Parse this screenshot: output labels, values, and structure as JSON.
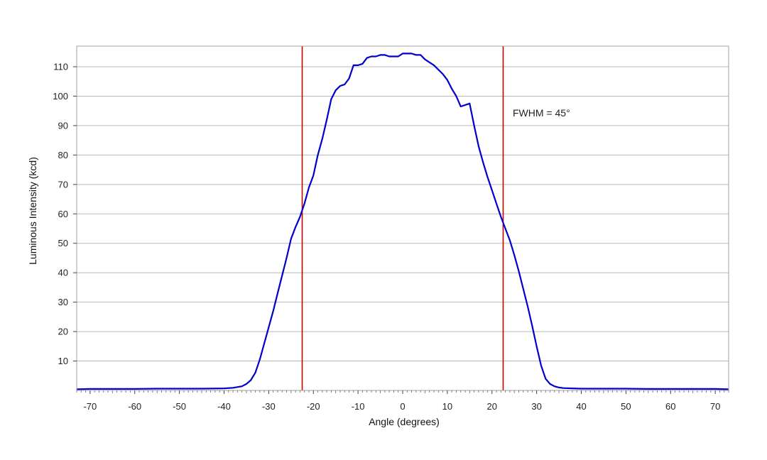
{
  "chart_data": {
    "type": "line",
    "title": "",
    "xlabel": "Angle (degrees)",
    "ylabel": "Luminous Intensity (kcd)",
    "xlim": [
      -73,
      73
    ],
    "ylim": [
      0,
      117
    ],
    "grid": true,
    "x_ticks": [
      -70,
      -60,
      -50,
      -40,
      -30,
      -20,
      -10,
      0,
      10,
      20,
      30,
      40,
      50,
      60,
      70
    ],
    "y_ticks": [
      10,
      20,
      30,
      40,
      50,
      60,
      70,
      80,
      90,
      100,
      110
    ],
    "annotation": "FWHM = 45°",
    "colors": {
      "curve": "#0000cc",
      "markers": "#cc0000",
      "grid": "#b8b8b8",
      "frame": "#a0a0a0"
    },
    "series": [
      {
        "x": [
          -73,
          -70,
          -65,
          -60,
          -55,
          -50,
          -45,
          -40,
          -38,
          -36,
          -35,
          -34,
          -33,
          -32,
          -31,
          -30,
          -29,
          -28,
          -27,
          -26,
          -25,
          -24,
          -23,
          -22,
          -21,
          -20,
          -19,
          -18,
          -17,
          -16,
          -15,
          -14,
          -13,
          -12,
          -11,
          -10,
          -9,
          -8,
          -7,
          -6,
          -5,
          -4,
          -3,
          -2,
          -1,
          0,
          1,
          2,
          3,
          4,
          5,
          6,
          7,
          8,
          9,
          10,
          11,
          12,
          13,
          14,
          15,
          16,
          17,
          18,
          19,
          20,
          21,
          22,
          23,
          24,
          25,
          26,
          27,
          28,
          29,
          30,
          31,
          32,
          33,
          34,
          35,
          36,
          38,
          40,
          45,
          50,
          55,
          60,
          65,
          70,
          73
        ],
        "y": [
          0.4,
          0.5,
          0.5,
          0.5,
          0.6,
          0.6,
          0.6,
          0.7,
          0.9,
          1.4,
          2.2,
          3.5,
          6,
          10.5,
          16,
          21.5,
          27,
          33,
          39,
          45,
          51.5,
          55.5,
          59,
          63.5,
          69,
          73,
          80,
          85.5,
          92,
          99,
          102,
          103.5,
          104,
          106,
          110.5,
          110.5,
          111,
          113,
          113.5,
          113.5,
          114,
          114,
          113.5,
          113.5,
          113.5,
          114.5,
          114.5,
          114.5,
          114,
          114,
          112.5,
          111.5,
          110.5,
          109,
          107.5,
          105.5,
          102.5,
          100,
          96.5,
          97,
          97.5,
          90,
          83,
          77.5,
          72.5,
          68,
          63.5,
          59,
          55,
          51,
          46,
          40.5,
          34.5,
          28.5,
          22,
          15,
          8.5,
          4,
          2.2,
          1.4,
          1,
          0.8,
          0.7,
          0.6,
          0.6,
          0.6,
          0.5,
          0.5,
          0.5,
          0.5,
          0.4
        ]
      }
    ],
    "vertical_markers": [
      -22.5,
      22.5
    ]
  }
}
